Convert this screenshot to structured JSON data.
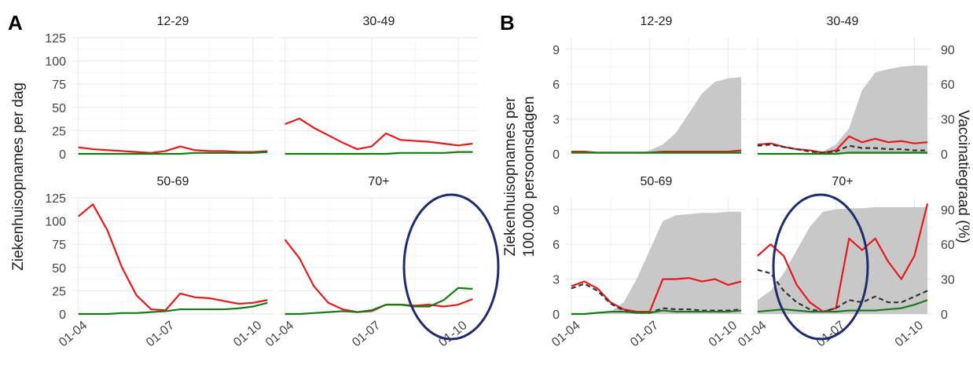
{
  "figure": {
    "panel_a_letter": "A",
    "panel_b_letter": "B",
    "ylabel_a": "Ziekenhuisopnames per dag",
    "ylabel_b_line1": "Ziekenhuisopnames per",
    "ylabel_b_line2": "100.000 persoonsdagen",
    "ylabel_b_right": "Vaccinatiegraad (%)"
  },
  "colors": {
    "unvaccinated": "#e41a1c",
    "vaccinated": "#1a7a1a",
    "dashed": "#333333",
    "vaccination_area": "#c8c8c8",
    "ellipse": "#1f2d6e",
    "grid": "#ebebeb"
  },
  "chart_data": [
    {
      "panel": "A",
      "type": "line",
      "x_ticks": [
        "01-04",
        "01-07",
        "01-10"
      ],
      "y_ticks": [
        0,
        25,
        50,
        75,
        100,
        125
      ],
      "ylim": [
        0,
        125
      ],
      "ylabel": "Ziekenhuisopnames per dag",
      "grid": true,
      "x": [
        "01-04",
        "15-04",
        "01-05",
        "15-05",
        "01-06",
        "15-06",
        "01-07",
        "15-07",
        "01-08",
        "15-08",
        "01-09",
        "15-09",
        "01-10",
        "15-10"
      ],
      "facets": [
        {
          "title": "12-29",
          "series": [
            {
              "color": "red",
              "values": [
                7,
                5,
                4,
                3,
                2,
                1,
                3,
                8,
                4,
                3,
                3,
                2,
                2,
                3
              ]
            },
            {
              "color": "green",
              "values": [
                0,
                0,
                0,
                0,
                0,
                0,
                0,
                0,
                1,
                1,
                1,
                1,
                1,
                2
              ]
            }
          ]
        },
        {
          "title": "30-49",
          "series": [
            {
              "color": "red",
              "values": [
                32,
                38,
                28,
                20,
                12,
                5,
                8,
                22,
                15,
                14,
                13,
                11,
                9,
                11
              ]
            },
            {
              "color": "green",
              "values": [
                0,
                0,
                0,
                0,
                0,
                0,
                0,
                0,
                1,
                1,
                1,
                1,
                2,
                2
              ]
            }
          ]
        },
        {
          "title": "50-69",
          "series": [
            {
              "color": "red",
              "values": [
                105,
                118,
                90,
                50,
                20,
                5,
                4,
                22,
                18,
                17,
                14,
                11,
                12,
                15
              ]
            },
            {
              "color": "green",
              "values": [
                0,
                0,
                0,
                1,
                1,
                2,
                3,
                5,
                5,
                5,
                5,
                6,
                8,
                12
              ]
            }
          ]
        },
        {
          "title": "70+",
          "series": [
            {
              "color": "red",
              "values": [
                80,
                60,
                30,
                12,
                5,
                2,
                3,
                10,
                10,
                9,
                10,
                8,
                10,
                16
              ]
            },
            {
              "color": "green",
              "values": [
                0,
                0,
                1,
                2,
                3,
                2,
                4,
                10,
                10,
                8,
                8,
                15,
                28,
                27
              ]
            }
          ]
        }
      ]
    },
    {
      "panel": "B",
      "type": "line",
      "x_ticks": [
        "01-04",
        "01-07",
        "01-10"
      ],
      "y_ticks": [
        0,
        3,
        6,
        9
      ],
      "ylim": [
        0,
        10
      ],
      "y2_ticks": [
        0,
        30,
        60,
        90
      ],
      "y2lim": [
        0,
        100
      ],
      "ylabel": "Ziekenhuisopnames per 100.000 persoonsdagen",
      "y2label": "Vaccinatiegraad (%)",
      "grid": true,
      "x": [
        "01-04",
        "15-04",
        "01-05",
        "15-05",
        "01-06",
        "15-06",
        "01-07",
        "15-07",
        "01-08",
        "15-08",
        "01-09",
        "15-09",
        "01-10",
        "15-10"
      ],
      "facets": [
        {
          "title": "12-29",
          "vaccination": [
            0,
            0,
            0,
            0,
            0,
            0,
            3,
            8,
            18,
            35,
            52,
            62,
            65,
            66
          ],
          "series": [
            {
              "color": "red",
              "values": [
                0.2,
                0.2,
                0.1,
                0.1,
                0.1,
                0.1,
                0.1,
                0.2,
                0.2,
                0.2,
                0.2,
                0.2,
                0.2,
                0.3
              ]
            },
            {
              "color": "green",
              "values": [
                0.1,
                0.1,
                0.1,
                0.1,
                0.1,
                0.1,
                0.1,
                0.1,
                0.1,
                0.1,
                0.1,
                0.1,
                0.1,
                0.1
              ]
            }
          ]
        },
        {
          "title": "30-49",
          "vaccination": [
            0,
            0,
            0,
            0,
            0,
            2,
            8,
            22,
            55,
            70,
            73,
            75,
            76,
            76
          ],
          "series": [
            {
              "color": "red",
              "values": [
                0.8,
                0.9,
                0.6,
                0.4,
                0.3,
                0.1,
                0.3,
                1.5,
                1.0,
                1.3,
                1.0,
                1.1,
                0.9,
                1.0
              ]
            },
            {
              "color": "dashed",
              "values": [
                0.7,
                0.8,
                0.6,
                0.4,
                0.2,
                0.1,
                0.2,
                0.7,
                0.5,
                0.5,
                0.4,
                0.4,
                0.3,
                0.3
              ]
            },
            {
              "color": "green",
              "values": [
                0,
                0,
                0,
                0,
                0,
                0,
                0,
                0.1,
                0.1,
                0.1,
                0.1,
                0.1,
                0.1,
                0.1
              ]
            }
          ]
        },
        {
          "title": "50-69",
          "vaccination": [
            0,
            0,
            0,
            2,
            10,
            30,
            55,
            80,
            85,
            86,
            87,
            87,
            88,
            88
          ],
          "series": [
            {
              "color": "red",
              "values": [
                2.4,
                2.8,
                2.2,
                1.0,
                0.4,
                0.2,
                0.2,
                3.0,
                3.0,
                3.1,
                2.8,
                3.0,
                2.5,
                2.8
              ]
            },
            {
              "color": "dashed",
              "values": [
                2.2,
                2.6,
                2.0,
                0.9,
                0.3,
                0.1,
                0.1,
                0.5,
                0.4,
                0.4,
                0.3,
                0.3,
                0.3,
                0.4
              ]
            },
            {
              "color": "green",
              "values": [
                0,
                0,
                0.1,
                0.2,
                0.2,
                0.1,
                0.1,
                0.3,
                0.2,
                0.2,
                0.2,
                0.2,
                0.2,
                0.3
              ]
            }
          ]
        },
        {
          "title": "70+",
          "vaccination": [
            12,
            20,
            35,
            55,
            75,
            88,
            90,
            91,
            91,
            92,
            92,
            92,
            92,
            92
          ],
          "series": [
            {
              "color": "red",
              "values": [
                5.0,
                6.0,
                5.0,
                2.5,
                1.0,
                0.2,
                0.5,
                6.5,
                5.5,
                6.5,
                4.5,
                3.0,
                5.0,
                9.5
              ]
            },
            {
              "color": "dashed",
              "values": [
                3.8,
                3.5,
                2.0,
                1.0,
                0.4,
                0.2,
                0.5,
                1.2,
                1.0,
                1.5,
                1.0,
                1.0,
                1.5,
                2.0
              ]
            },
            {
              "color": "green",
              "values": [
                0.2,
                0.3,
                0.4,
                0.3,
                0.2,
                0.2,
                0.2,
                0.3,
                0.3,
                0.3,
                0.4,
                0.5,
                0.8,
                1.2
              ]
            }
          ]
        }
      ]
    }
  ]
}
